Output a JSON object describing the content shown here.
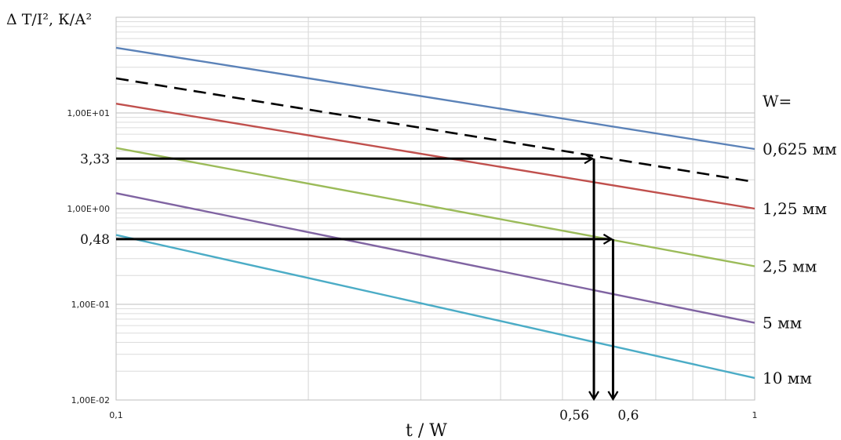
{
  "chart_data": {
    "type": "line",
    "x_scale": "log",
    "y_scale": "log",
    "xlim": [
      0.1,
      1
    ],
    "ylim": [
      0.01,
      100
    ],
    "grid": true,
    "y_label": "Δ T/I², К/А²",
    "x_label": "t / W",
    "x_ticks": [
      "0,1",
      "1"
    ],
    "y_ticks": [
      "1,00E-02",
      "1,00E-01",
      "1,00E+00",
      "1,00E+01"
    ],
    "legend_title": "W=",
    "series": [
      {
        "name": "0,625 мм",
        "color": "#5b82b8",
        "x": [
          0.1,
          1
        ],
        "y": [
          48,
          4.2
        ]
      },
      {
        "name": "1,25 мм",
        "color": "#c0504d",
        "x": [
          0.1,
          1
        ],
        "y": [
          12.5,
          1.0
        ]
      },
      {
        "name": "2,5 мм",
        "color": "#9bbb59",
        "x": [
          0.1,
          1
        ],
        "y": [
          4.3,
          0.25
        ]
      },
      {
        "name": "5 мм",
        "color": "#8064a2",
        "x": [
          0.1,
          1
        ],
        "y": [
          1.45,
          0.064
        ]
      },
      {
        "name": "10 мм",
        "color": "#4bacc6",
        "x": [
          0.1,
          1
        ],
        "y": [
          0.53,
          0.017
        ]
      },
      {
        "name": "",
        "color": "#000000",
        "dashed": true,
        "x": [
          0.1,
          1
        ],
        "y": [
          23,
          1.9
        ]
      }
    ],
    "annotations": [
      {
        "y_text": "3,33",
        "y": 3.33,
        "x_text": "0,56",
        "x": 0.56
      },
      {
        "y_text": "0,48",
        "y": 0.48,
        "x_text": "0,6",
        "x": 0.6
      }
    ]
  }
}
